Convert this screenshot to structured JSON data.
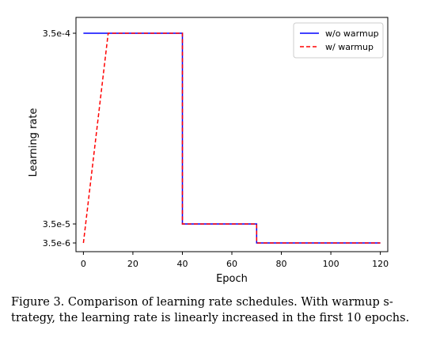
{
  "chart_data": {
    "type": "line",
    "title": "",
    "xlabel": "Epoch",
    "ylabel": "Learning rate",
    "xlim": [
      -3,
      123
    ],
    "x_ticks": [
      0,
      20,
      40,
      60,
      80,
      100,
      120
    ],
    "y_ticks": [
      {
        "value": 0.00035,
        "label": "3.5e-4"
      },
      {
        "value": 3.5e-05,
        "label": "3.5e-5"
      },
      {
        "value": 3.5e-06,
        "label": "3.5e-6"
      }
    ],
    "legend_position": "top-right",
    "series": [
      {
        "name": "w/o warmup",
        "color": "#0000ff",
        "style": "solid",
        "points": [
          [
            0,
            0.00035
          ],
          [
            40,
            0.00035
          ],
          [
            40,
            3.5e-05
          ],
          [
            70,
            3.5e-05
          ],
          [
            70,
            3.5e-06
          ],
          [
            120,
            3.5e-06
          ]
        ]
      },
      {
        "name": "w/ warmup",
        "color": "#ff0000",
        "style": "dashed",
        "points": [
          [
            0,
            3.5e-06
          ],
          [
            10,
            0.00035
          ],
          [
            40,
            0.00035
          ],
          [
            40,
            3.5e-05
          ],
          [
            70,
            3.5e-05
          ],
          [
            70,
            3.5e-06
          ],
          [
            120,
            3.5e-06
          ]
        ]
      }
    ]
  },
  "caption": {
    "line1": "Figure 3. Comparison of learning rate schedules. With warmup s-",
    "line2": "trategy, the learning rate is linearly increased in the first 10 epochs."
  }
}
